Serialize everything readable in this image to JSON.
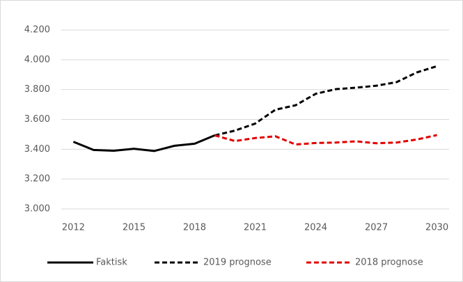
{
  "chart_data": {
    "type": "line",
    "x": [
      2012,
      2013,
      2014,
      2015,
      2016,
      2017,
      2018,
      2019,
      2020,
      2021,
      2022,
      2023,
      2024,
      2025,
      2026,
      2027,
      2028,
      2029,
      2030
    ],
    "series": [
      {
        "name": "Faktisk",
        "color": "#000000",
        "line_style": "solid",
        "values": [
          3450,
          3395,
          3390,
          3403,
          3388,
          3423,
          3437,
          3493,
          null,
          null,
          null,
          null,
          null,
          null,
          null,
          null,
          null,
          null,
          null
        ]
      },
      {
        "name": "2019 prognose",
        "color": "#000000",
        "line_style": "dashed",
        "values": [
          null,
          null,
          null,
          null,
          null,
          null,
          null,
          3493,
          3525,
          3572,
          3665,
          3695,
          3772,
          3803,
          3813,
          3826,
          3850,
          3915,
          3957
        ]
      },
      {
        "name": "2018 prognose",
        "color": "#e00000",
        "line_style": "dashed",
        "values": [
          null,
          null,
          null,
          null,
          null,
          null,
          null,
          3493,
          3455,
          3475,
          3487,
          3432,
          3442,
          3445,
          3453,
          3440,
          3445,
          3465,
          3495
        ]
      }
    ],
    "xlim": [
      2011.4,
      2030.6
    ],
    "xticks": [
      2012,
      2015,
      2018,
      2021,
      2024,
      2027,
      2030
    ],
    "ylim": [
      3000,
      4200
    ],
    "yticks": [
      {
        "value": 3000,
        "label": "3.000"
      },
      {
        "value": 3200,
        "label": "3.200"
      },
      {
        "value": 3400,
        "label": "3.400"
      },
      {
        "value": 3600,
        "label": "3.600"
      },
      {
        "value": 3800,
        "label": "3.800"
      },
      {
        "value": 4000,
        "label": "4.000"
      },
      {
        "value": 4200,
        "label": "4.200"
      }
    ],
    "grid": true,
    "legend": "bottom"
  }
}
